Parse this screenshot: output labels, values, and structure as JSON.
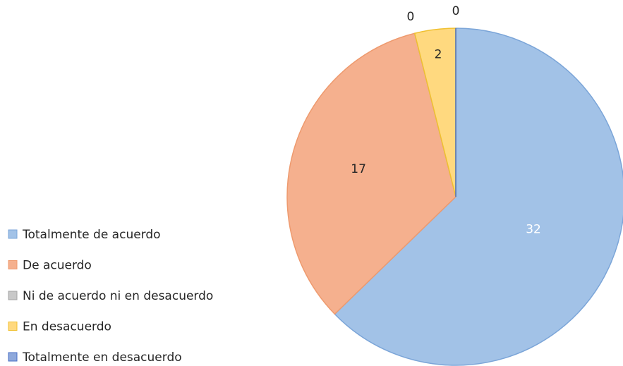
{
  "chart_data": {
    "type": "pie",
    "categories": [
      "Totalmente de acuerdo",
      "De acuerdo",
      "Ni de acuerdo ni en desacuerdo",
      "En desacuerdo",
      "Totalmente en desacuerdo"
    ],
    "values": [
      32,
      17,
      0,
      2,
      0
    ],
    "colors": [
      "#a2c2e7",
      "#f5b08e",
      "#c8c8c8",
      "#ffd97f",
      "#8ea8db"
    ],
    "legend": "left"
  }
}
